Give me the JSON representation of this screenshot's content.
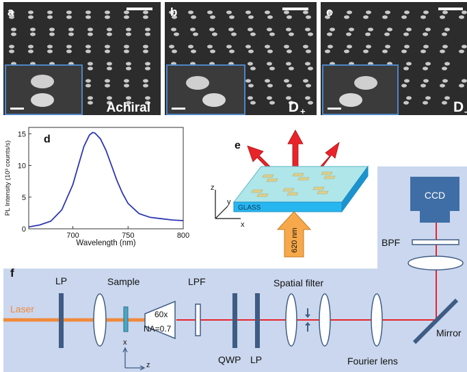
{
  "panels": {
    "a": {
      "label": "a",
      "tag": "Achiral",
      "tag_sub": ""
    },
    "b": {
      "label": "b",
      "tag": "D",
      "tag_sub": "+"
    },
    "c": {
      "label": "c",
      "tag": "D",
      "tag_sub": "-"
    }
  },
  "chart": {
    "label": "d",
    "xlabel": "Wavelength (nm)",
    "ylabel": "PL Intensity (10³ counts/s)",
    "color": "#2b35b0"
  },
  "chart_data": {
    "type": "line",
    "xlabel": "Wavelength (nm)",
    "ylabel": "PL Intensity (10³ counts/s)",
    "xlim": [
      660,
      800
    ],
    "ylim": [
      0,
      16
    ],
    "xticks": [
      700,
      750,
      800
    ],
    "yticks": [
      0,
      5,
      10,
      15
    ],
    "series": [
      {
        "x": [
          660,
          670,
          680,
          690,
          700,
          705,
          710,
          715,
          718,
          720,
          725,
          730,
          735,
          740,
          745,
          750,
          760,
          770,
          780,
          790,
          800
        ],
        "values": [
          0.3,
          0.6,
          1.2,
          3.0,
          7.0,
          10.0,
          13.0,
          14.8,
          15.2,
          15.1,
          14.2,
          12.4,
          10.0,
          7.6,
          5.6,
          4.0,
          2.4,
          1.8,
          1.6,
          1.4,
          1.3
        ]
      }
    ]
  },
  "schematic": {
    "label": "e",
    "substrate": "GLASS",
    "beam": "620 nm",
    "axis_x": "x",
    "axis_y": "y",
    "axis_z": "z"
  },
  "setup": {
    "label": "f",
    "laser": "Laser",
    "lp1": "LP",
    "sample": "Sample",
    "objective_mag": "60x",
    "objective_na": "NA=0.7",
    "lpf": "LPF",
    "qwp": "QWP",
    "lp2": "LP",
    "spatial_filter": "Spatial filter",
    "fourier_lens": "Fourier lens",
    "mirror": "Mirror",
    "bpf": "BPF",
    "ccd": "CCD",
    "axis_x": "x",
    "axis_z": "z"
  },
  "colors": {
    "panel_bg": "#cad7ee",
    "beam": "#e8242a",
    "laser": "#f08a3c",
    "optic_dark": "#3e5c84",
    "ccd": "#3f6ea6"
  }
}
